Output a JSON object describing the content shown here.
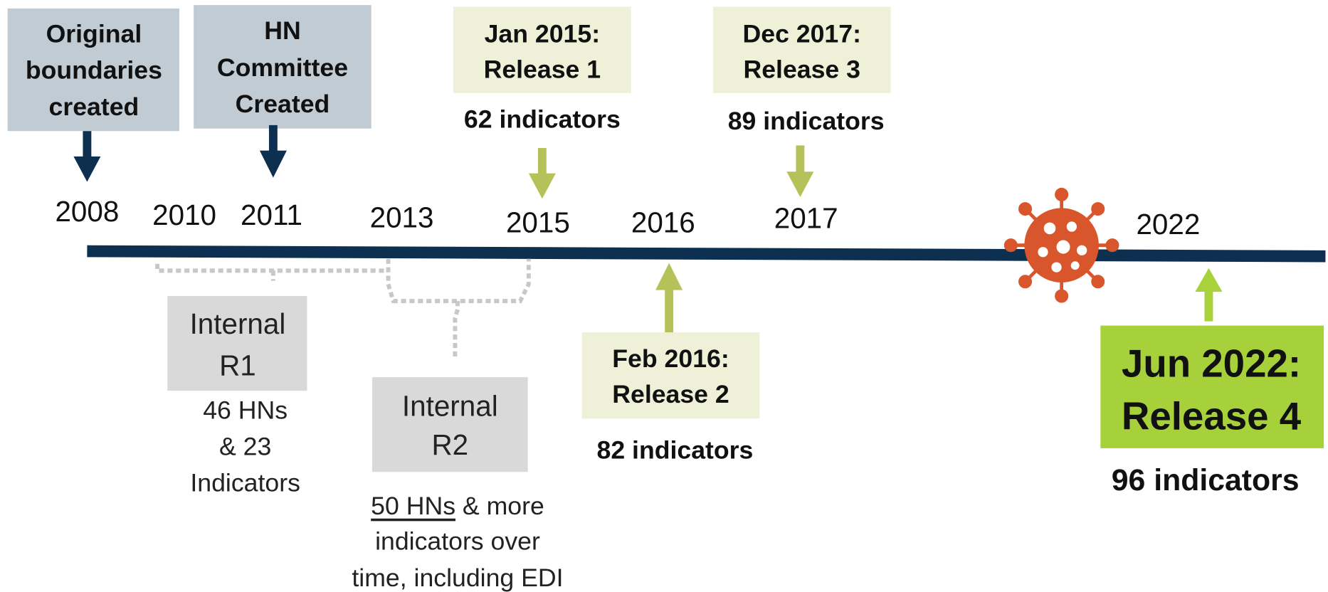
{
  "years": [
    "2008",
    "2010",
    "2011",
    "2013",
    "2015",
    "2016",
    "2017",
    "2022"
  ],
  "milestones": [
    {
      "lines": [
        "Original",
        "boundaries",
        "created"
      ]
    },
    {
      "lines": [
        "HN",
        "Committee",
        "Created"
      ]
    },
    {
      "lines": [
        "Jan 2015:",
        "Release 1"
      ],
      "note": "62 indicators"
    },
    {
      "lines": [
        "Dec 2017:",
        "Release 3"
      ],
      "note": "89 indicators"
    },
    {
      "lines": [
        "Feb 2016:",
        "Release 2"
      ],
      "note": "82 indicators"
    },
    {
      "lines": [
        "Jun 2022:",
        "Release 4"
      ],
      "note": "96 indicators"
    }
  ],
  "internal": [
    {
      "lines": [
        "Internal",
        "R1"
      ],
      "note": [
        "46 HNs",
        "& 23",
        "Indicators"
      ]
    },
    {
      "lines": [
        "Internal",
        "R2"
      ],
      "note_underlined": "50 HNs",
      "note": [
        "& more",
        "indicators over",
        "time, including EDI"
      ]
    }
  ]
}
